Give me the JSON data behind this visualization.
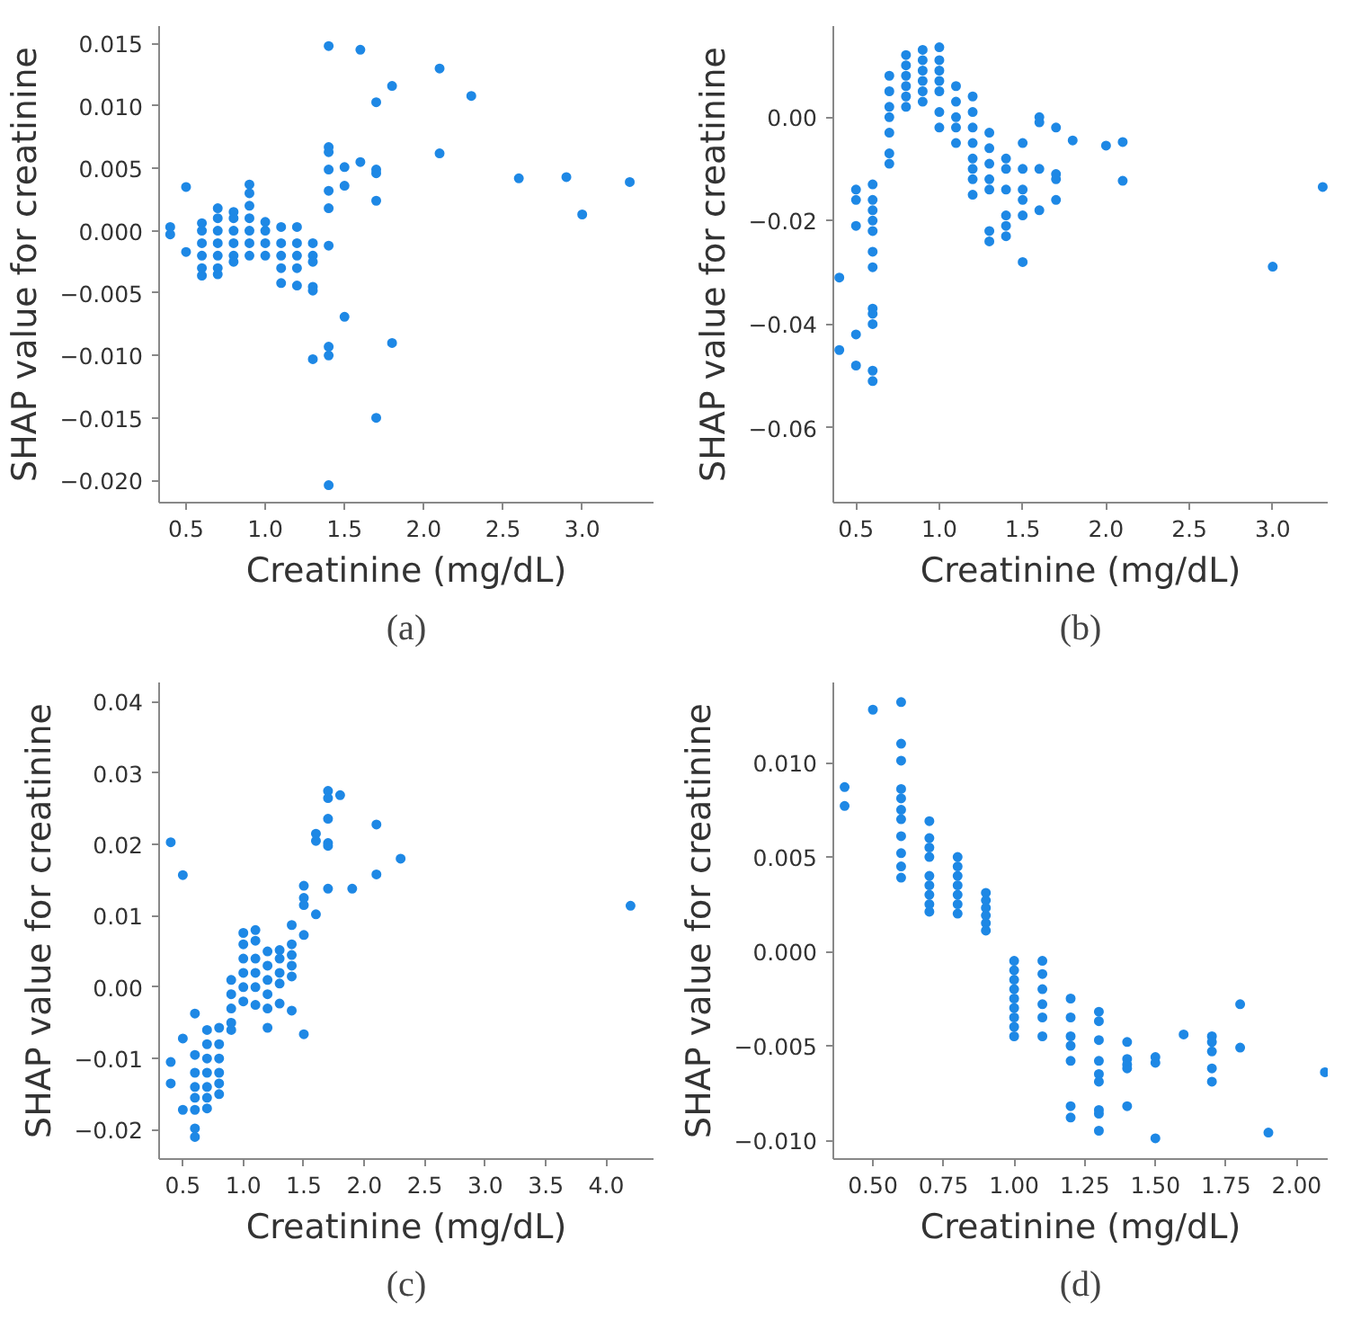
{
  "chart_data": [
    {
      "type": "scatter",
      "title": "(a)",
      "xlabel": "Creatinine (mg/dL)",
      "ylabel": "SHAP value for creatinine",
      "marker": "circle",
      "xlim": [
        0.33,
        3.45
      ],
      "ylim": [
        -0.0218,
        0.0164
      ],
      "xticks": [
        0.5,
        {
          "value": 1.0,
          "label": "1.0"
        },
        1.5,
        {
          "value": 2.0,
          "label": "2.0"
        },
        2.5,
        {
          "value": 3.0,
          "label": "3.0"
        }
      ],
      "yticks": [
        {
          "value": -0.02,
          "label": "−0.020"
        },
        {
          "value": -0.015,
          "label": "−0.015"
        },
        {
          "value": -0.01,
          "label": "−0.010"
        },
        {
          "value": -0.005,
          "label": "−0.005"
        },
        {
          "value": 0,
          "label": "0.000"
        },
        0.005,
        {
          "value": 0.01,
          "label": "0.010"
        },
        0.015
      ],
      "series": [
        {
          "color": "#1e88e5",
          "x": [
            0.4,
            0.4,
            0.5,
            0.5,
            0.6,
            0.6,
            0.6,
            0.6,
            0.6,
            0.6,
            0.7,
            0.7,
            0.7,
            0.7,
            0.7,
            0.7,
            0.7,
            0.8,
            0.8,
            0.8,
            0.8,
            0.8,
            0.8,
            0.9,
            0.9,
            0.9,
            0.9,
            0.9,
            0.9,
            0.9,
            1.0,
            1.0,
            1.0,
            1.0,
            1.1,
            1.1,
            1.1,
            1.1,
            1.1,
            1.2,
            1.2,
            1.2,
            1.2,
            1.2,
            1.3,
            1.3,
            1.3,
            1.3,
            1.3,
            1.3,
            1.4,
            1.4,
            1.4,
            1.4,
            1.4,
            1.4,
            1.4,
            1.4,
            1.4,
            1.4,
            1.5,
            1.5,
            1.5,
            1.6,
            1.6,
            1.7,
            1.7,
            1.7,
            1.7,
            1.7,
            1.8,
            1.8,
            2.1,
            2.1,
            2.3,
            2.6,
            2.9,
            3.0,
            3.3
          ],
          "values": [
            0.0003,
            -0.0003,
            0.0035,
            -0.0017,
            0.0006,
            0,
            -0.001,
            -0.002,
            -0.003,
            -0.0036,
            0.0018,
            0.001,
            0,
            -0.001,
            -0.002,
            -0.003,
            -0.0035,
            0.0015,
            0.001,
            0,
            -0.001,
            -0.002,
            -0.0025,
            0.0037,
            0.003,
            0.002,
            0.001,
            0,
            -0.001,
            -0.002,
            0.0007,
            0,
            -0.001,
            -0.002,
            0.0003,
            -0.001,
            -0.002,
            -0.003,
            -0.0042,
            0.0003,
            -0.001,
            -0.002,
            -0.003,
            -0.0044,
            -0.001,
            -0.002,
            -0.0025,
            -0.0045,
            -0.0048,
            -0.0103,
            0.0148,
            0.0067,
            0.0063,
            0.0049,
            0.0032,
            0.0018,
            -0.0012,
            -0.0093,
            -0.01,
            -0.0204,
            0.0051,
            0.0036,
            -0.0069,
            0.0145,
            0.0055,
            0.0103,
            0.0049,
            0.0046,
            0.0024,
            -0.015,
            0.0116,
            -0.009,
            0.013,
            0.0062,
            0.0108,
            0.0042,
            0.0043,
            0.0013,
            0.0039
          ]
        }
      ]
    },
    {
      "type": "scatter",
      "title": "(b)",
      "xlabel": "Creatinine (mg/dL)",
      "ylabel": "SHAP value for creatinine",
      "marker": "circle",
      "xlim": [
        0.364,
        3.33
      ],
      "ylim": [
        -0.0745,
        0.0176
      ],
      "xticks": [
        0.5,
        {
          "value": 1.0,
          "label": "1.0"
        },
        1.5,
        {
          "value": 2.0,
          "label": "2.0"
        },
        2.5,
        {
          "value": 3.0,
          "label": "3.0"
        }
      ],
      "yticks": [
        {
          "value": -0.06,
          "label": "−0.06"
        },
        {
          "value": -0.04,
          "label": "−0.04"
        },
        {
          "value": -0.02,
          "label": "−0.02"
        },
        {
          "value": 0,
          "label": "0.00"
        }
      ],
      "series": [
        {
          "color": "#1e88e5",
          "x": [
            0.4,
            0.4,
            0.5,
            0.5,
            0.5,
            0.5,
            0.5,
            0.6,
            0.6,
            0.6,
            0.6,
            0.6,
            0.6,
            0.6,
            0.6,
            0.6,
            0.6,
            0.6,
            0.6,
            0.7,
            0.7,
            0.7,
            0.7,
            0.7,
            0.7,
            0.7,
            0.8,
            0.8,
            0.8,
            0.8,
            0.8,
            0.8,
            0.9,
            0.9,
            0.9,
            0.9,
            0.9,
            0.9,
            1.0,
            1.0,
            1.0,
            1.0,
            1.0,
            1.0,
            1.0,
            1.1,
            1.1,
            1.1,
            1.1,
            1.1,
            1.2,
            1.2,
            1.2,
            1.2,
            1.2,
            1.2,
            1.2,
            1.2,
            1.3,
            1.3,
            1.3,
            1.3,
            1.3,
            1.3,
            1.3,
            1.4,
            1.4,
            1.4,
            1.4,
            1.4,
            1.4,
            1.5,
            1.5,
            1.5,
            1.5,
            1.5,
            1.5,
            1.6,
            1.6,
            1.6,
            1.6,
            1.7,
            1.7,
            1.7,
            1.7,
            1.8,
            2.0,
            2.1,
            2.1,
            3.0,
            3.3
          ],
          "values": [
            -0.031,
            -0.045,
            -0.014,
            -0.016,
            -0.021,
            -0.042,
            -0.048,
            -0.013,
            -0.016,
            -0.018,
            -0.02,
            -0.022,
            -0.026,
            -0.029,
            -0.037,
            -0.038,
            -0.04,
            -0.049,
            -0.051,
            0.008,
            0.005,
            0.002,
            0,
            -0.003,
            -0.007,
            -0.009,
            0.012,
            0.01,
            0.008,
            0.006,
            0.004,
            0.002,
            0.013,
            0.011,
            0.009,
            0.007,
            0.005,
            0.003,
            0.0135,
            0.011,
            0.009,
            0.007,
            0.005,
            0.001,
            -0.002,
            0.006,
            0.003,
            0,
            -0.002,
            -0.005,
            0.004,
            0.001,
            -0.002,
            -0.005,
            -0.008,
            -0.01,
            -0.012,
            -0.015,
            -0.003,
            -0.006,
            -0.009,
            -0.012,
            -0.014,
            -0.022,
            -0.024,
            -0.008,
            -0.01,
            -0.014,
            -0.019,
            -0.021,
            -0.023,
            -0.005,
            -0.01,
            -0.014,
            -0.016,
            -0.019,
            -0.028,
            0,
            -0.001,
            -0.01,
            -0.018,
            -0.002,
            -0.011,
            -0.012,
            -0.016,
            -0.0045,
            -0.0055,
            -0.0048,
            -0.0123,
            -0.0289,
            -0.0135
          ]
        }
      ]
    },
    {
      "type": "scatter",
      "title": "(c)",
      "xlabel": "Creatinine (mg/dL)",
      "ylabel": "SHAP value for creatinine",
      "marker": "circle",
      "xlim": [
        0.304,
        4.39
      ],
      "ylim": [
        -0.0241,
        0.0427
      ],
      "xticks": [
        0.5,
        {
          "value": 1.0,
          "label": "1.0"
        },
        1.5,
        {
          "value": 2.0,
          "label": "2.0"
        },
        2.5,
        {
          "value": 3.0,
          "label": "3.0"
        },
        3.5,
        {
          "value": 4.0,
          "label": "4.0"
        }
      ],
      "yticks": [
        {
          "value": -0.02,
          "label": "−0.02"
        },
        {
          "value": -0.01,
          "label": "−0.01"
        },
        {
          "value": 0,
          "label": "0.00"
        },
        0.01,
        0.02,
        0.03,
        0.04
      ],
      "series": [
        {
          "color": "#1e88e5",
          "x": [
            0.4,
            0.4,
            0.4,
            0.5,
            0.5,
            0.5,
            0.6,
            0.6,
            0.6,
            0.6,
            0.6,
            0.6,
            0.6,
            0.6,
            0.7,
            0.7,
            0.7,
            0.7,
            0.7,
            0.7,
            0.7,
            0.8,
            0.8,
            0.8,
            0.8,
            0.8,
            0.8,
            0.9,
            0.9,
            0.9,
            0.9,
            0.9,
            1.0,
            1.0,
            1.0,
            1.0,
            1.0,
            1.0,
            1.1,
            1.1,
            1.1,
            1.1,
            1.1,
            1.1,
            1.2,
            1.2,
            1.2,
            1.2,
            1.2,
            1.2,
            1.3,
            1.3,
            1.3,
            1.3,
            1.3,
            1.4,
            1.4,
            1.4,
            1.4,
            1.4,
            1.4,
            1.5,
            1.5,
            1.5,
            1.5,
            1.5,
            1.6,
            1.6,
            1.6,
            1.7,
            1.7,
            1.7,
            1.7,
            1.7,
            1.7,
            1.8,
            1.9,
            2.1,
            2.1,
            2.3,
            4.2
          ],
          "values": [
            0.0203,
            -0.0105,
            -0.0135,
            0.0157,
            -0.0072,
            -0.0172,
            -0.0037,
            -0.0095,
            -0.012,
            -0.014,
            -0.0155,
            -0.0172,
            -0.0198,
            -0.021,
            -0.006,
            -0.008,
            -0.01,
            -0.012,
            -0.014,
            -0.0155,
            -0.017,
            -0.0057,
            -0.008,
            -0.01,
            -0.012,
            -0.0135,
            -0.015,
            0.001,
            -0.001,
            -0.003,
            -0.005,
            -0.006,
            0.0076,
            0.006,
            0.004,
            0.002,
            0,
            -0.002,
            0.008,
            0.0065,
            0.004,
            0.002,
            0,
            -0.0025,
            0.005,
            0.003,
            0.001,
            -0.001,
            -0.003,
            -0.0057,
            0.0052,
            0.004,
            0.002,
            0.0005,
            -0.0023,
            0.0087,
            0.006,
            0.0045,
            0.003,
            0.0015,
            -0.0033,
            0.0142,
            0.0125,
            0.0115,
            0.0073,
            -0.0066,
            0.0215,
            0.0205,
            0.0102,
            0.0275,
            0.0265,
            0.0236,
            0.0202,
            0.0198,
            0.0138,
            0.0269,
            0.0138,
            0.0228,
            0.0158,
            0.018,
            0.0114
          ]
        }
      ]
    },
    {
      "type": "scatter",
      "title": "(d)",
      "xlabel": "Creatinine (mg/dL)",
      "ylabel": "SHAP value for creatinine",
      "marker": "circle",
      "xlim": [
        0.36,
        2.11
      ],
      "ylim": [
        -0.011,
        0.01424
      ],
      "xticks": [
        {
          "value": 0.5,
          "label": "0.50"
        },
        0.75,
        {
          "value": 1.0,
          "label": "1.00"
        },
        1.25,
        {
          "value": 1.5,
          "label": "1.50"
        },
        1.75,
        {
          "value": 2.0,
          "label": "2.00"
        }
      ],
      "yticks": [
        {
          "value": -0.01,
          "label": "−0.010"
        },
        {
          "value": -0.005,
          "label": "−0.005"
        },
        {
          "value": 0,
          "label": "0.000"
        },
        0.005,
        {
          "value": 0.01,
          "label": "0.010"
        }
      ],
      "series": [
        {
          "color": "#1e88e5",
          "x": [
            0.4,
            0.4,
            0.5,
            0.6,
            0.6,
            0.6,
            0.6,
            0.6,
            0.6,
            0.6,
            0.6,
            0.6,
            0.6,
            0.6,
            0.7,
            0.7,
            0.7,
            0.7,
            0.7,
            0.7,
            0.7,
            0.7,
            0.7,
            0.8,
            0.8,
            0.8,
            0.8,
            0.8,
            0.8,
            0.8,
            0.9,
            0.9,
            0.9,
            0.9,
            0.9,
            0.9,
            1.0,
            1.0,
            1.0,
            1.0,
            1.0,
            1.0,
            1.0,
            1.0,
            1.0,
            1.1,
            1.1,
            1.1,
            1.1,
            1.1,
            1.1,
            1.2,
            1.2,
            1.2,
            1.2,
            1.2,
            1.2,
            1.2,
            1.3,
            1.3,
            1.3,
            1.3,
            1.3,
            1.3,
            1.3,
            1.3,
            1.3,
            1.4,
            1.4,
            1.4,
            1.4,
            1.4,
            1.5,
            1.5,
            1.5,
            1.6,
            1.7,
            1.7,
            1.7,
            1.7,
            1.7,
            1.8,
            1.8,
            1.9,
            2.1
          ],
          "values": [
            0.0087,
            0.0077,
            0.0128,
            0.0132,
            0.011,
            0.0101,
            0.0086,
            0.0081,
            0.0075,
            0.007,
            0.0061,
            0.0052,
            0.0045,
            0.0039,
            0.0069,
            0.006,
            0.0055,
            0.005,
            0.004,
            0.0035,
            0.003,
            0.0025,
            0.0021,
            0.005,
            0.0045,
            0.004,
            0.0035,
            0.003,
            0.0025,
            0.002,
            0.0031,
            0.0027,
            0.0023,
            0.0019,
            0.0015,
            0.0011,
            -0.0005,
            -0.001,
            -0.0015,
            -0.002,
            -0.0025,
            -0.003,
            -0.0035,
            -0.004,
            -0.0045,
            -0.0005,
            -0.0012,
            -0.002,
            -0.0028,
            -0.0035,
            -0.0045,
            -0.0025,
            -0.0035,
            -0.0045,
            -0.005,
            -0.0058,
            -0.0082,
            -0.0088,
            -0.0032,
            -0.0037,
            -0.0047,
            -0.0058,
            -0.0065,
            -0.0069,
            -0.0084,
            -0.0086,
            -0.0095,
            -0.0048,
            -0.0057,
            -0.006,
            -0.0062,
            -0.0082,
            -0.0056,
            -0.0059,
            -0.0099,
            -0.0044,
            -0.0045,
            -0.0048,
            -0.0053,
            -0.0062,
            -0.0069,
            -0.0028,
            -0.0051,
            -0.0096,
            -0.0064
          ]
        }
      ]
    }
  ]
}
